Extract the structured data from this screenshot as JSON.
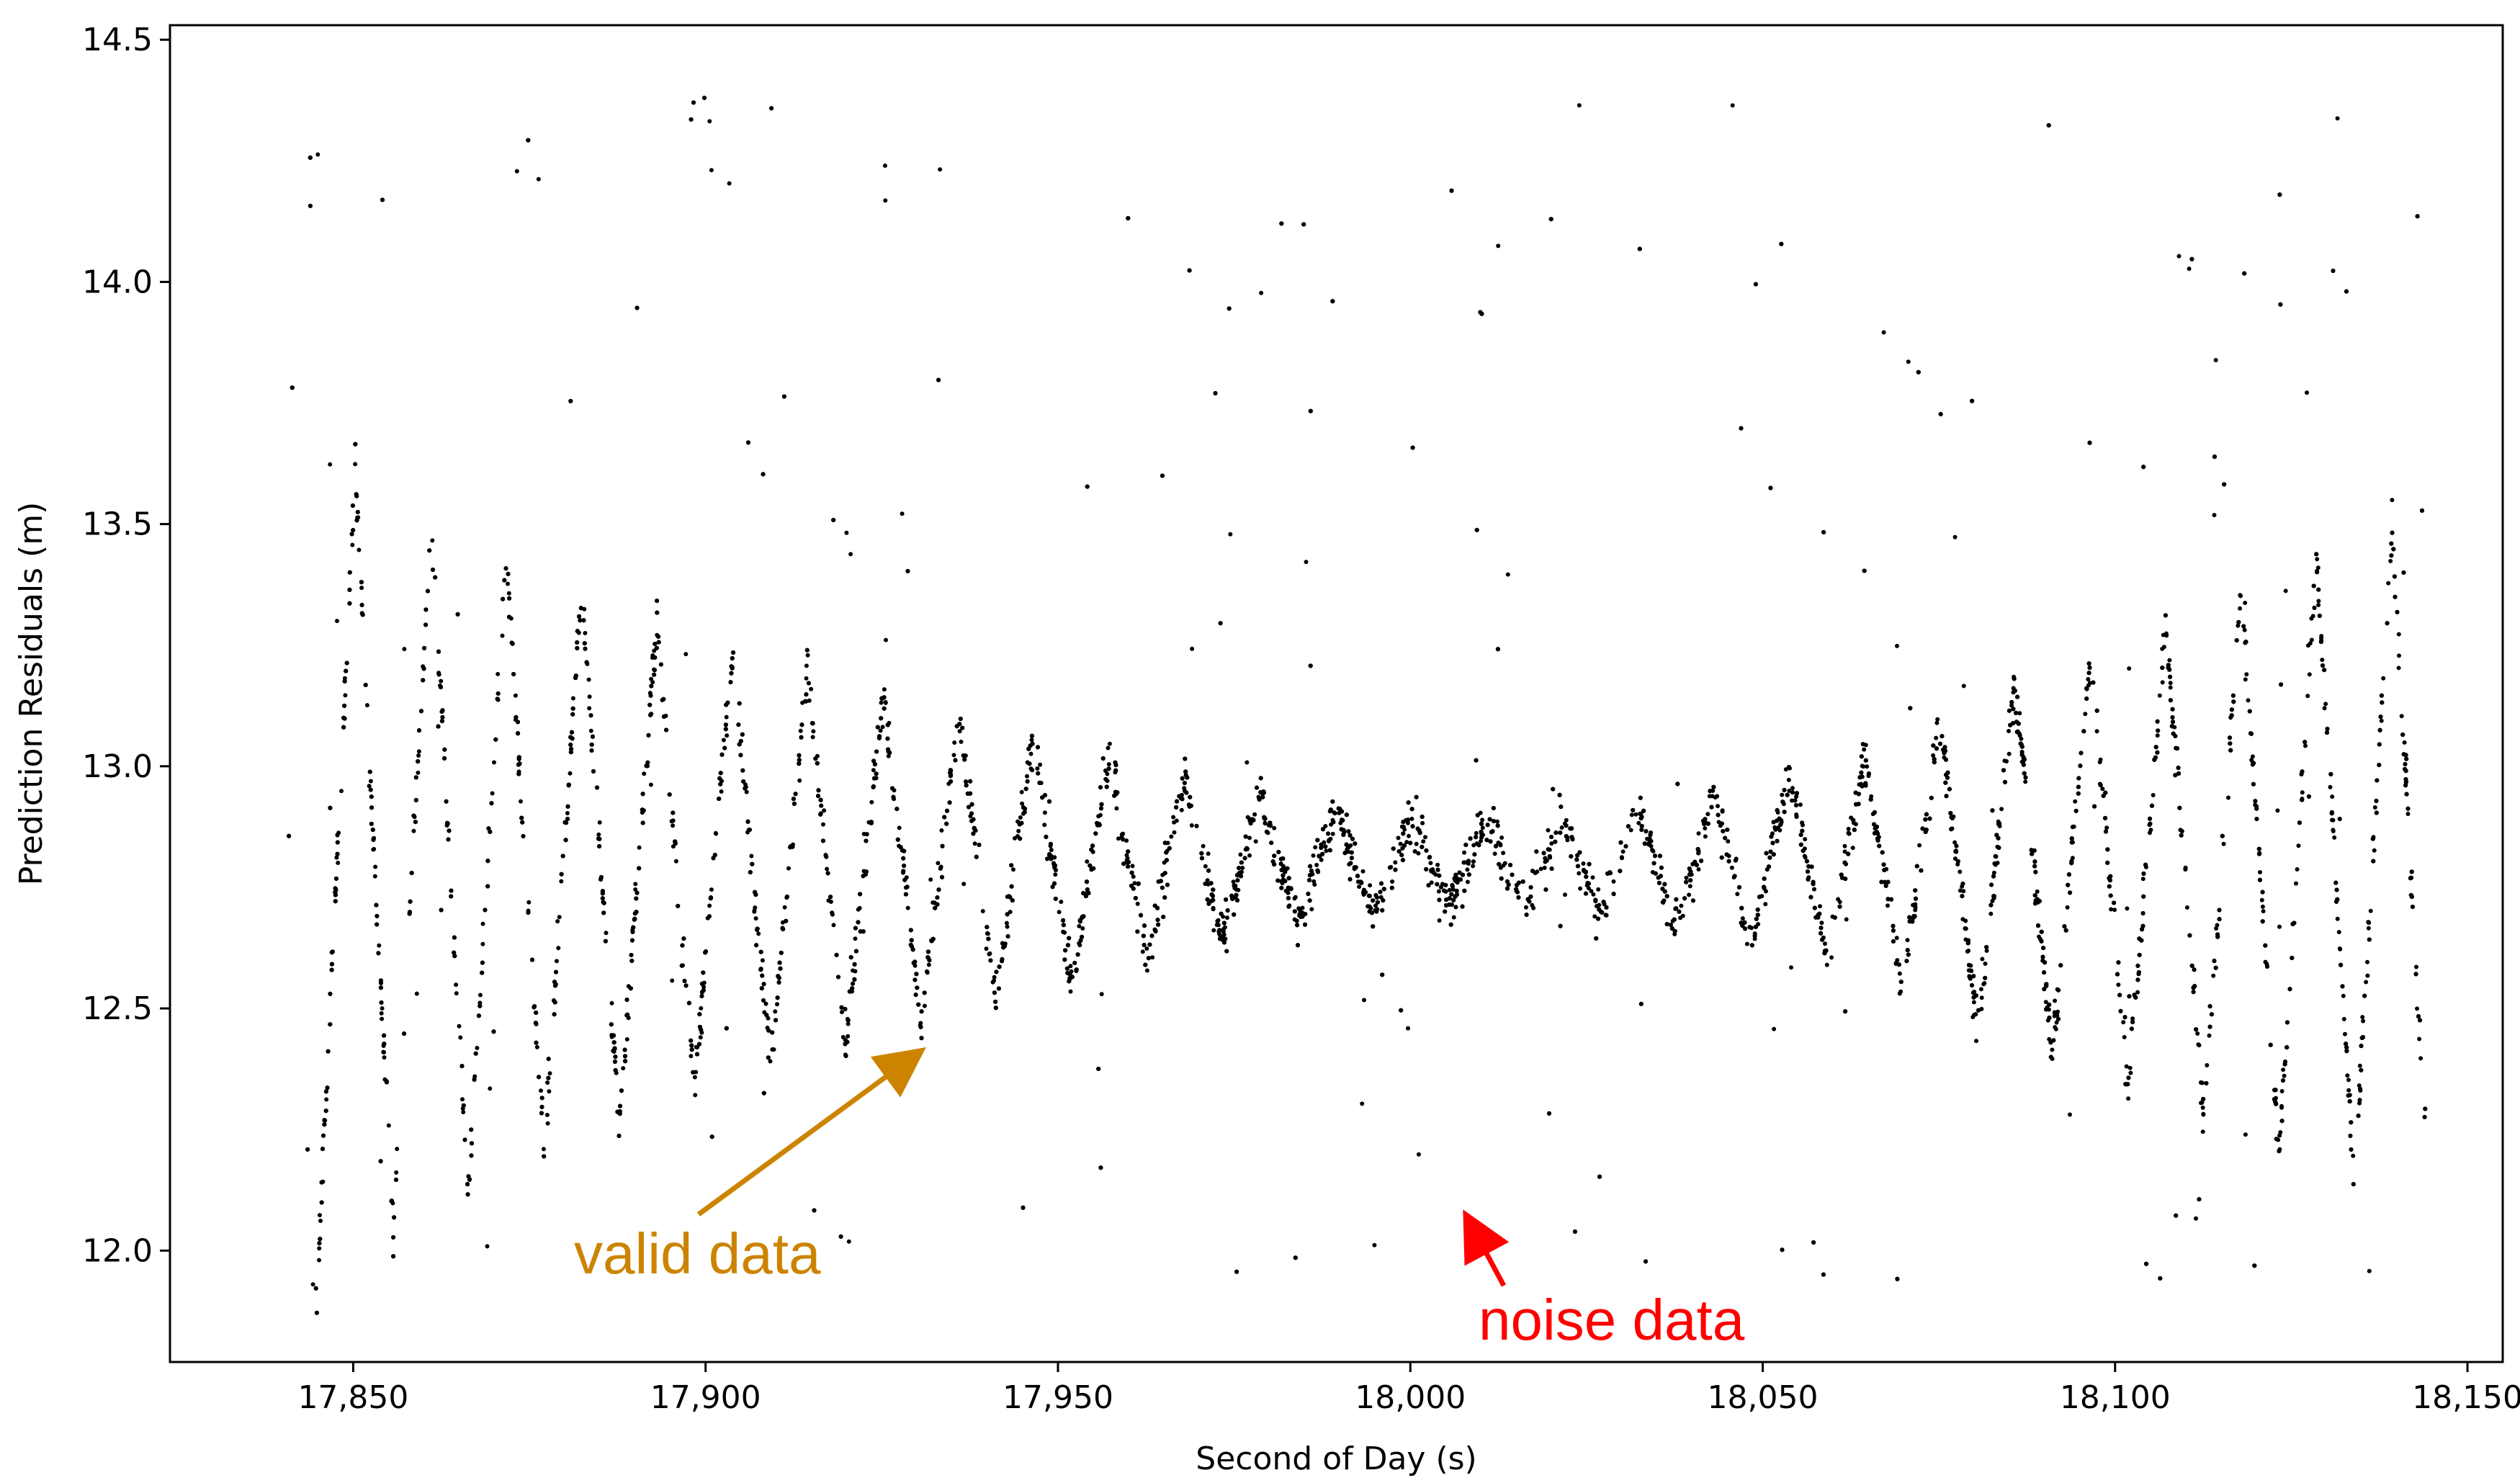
{
  "chart_data": {
    "type": "scatter",
    "title": "",
    "xlabel": "Second of Day (s)",
    "ylabel": "Prediction Residuals (m)",
    "xlim": [
      17824,
      18155
    ],
    "ylim": [
      11.77,
      14.53
    ],
    "xticks": [
      17850,
      17900,
      17950,
      18000,
      18050,
      18100,
      18150
    ],
    "xtick_labels": [
      "17,850",
      "17,900",
      "17,950",
      "18,000",
      "18,050",
      "18,100",
      "18,150"
    ],
    "yticks": [
      12.0,
      12.5,
      13.0,
      13.5,
      14.0,
      14.5
    ],
    "ytick_labels": [
      "12.0",
      "12.5",
      "13.0",
      "13.5",
      "14.0",
      "14.5"
    ],
    "grid": false,
    "legend": "none",
    "point_color": "#000000",
    "series": [
      {
        "x_range": [
          17840,
          18144
        ],
        "oscillation_period_s": 10.7,
        "center": 12.8,
        "envelope": [
          {
            "x": 17845,
            "amp": 0.85
          },
          {
            "x": 17870,
            "amp": 0.65
          },
          {
            "x": 17900,
            "amp": 0.45
          },
          {
            "x": 17950,
            "amp": 0.25
          },
          {
            "x": 17990,
            "amp": 0.1
          },
          {
            "x": 18020,
            "amp": 0.08
          },
          {
            "x": 18060,
            "amp": 0.2
          },
          {
            "x": 18100,
            "amp": 0.45
          },
          {
            "x": 18140,
            "amp": 0.7
          }
        ]
      }
    ],
    "annotations": [
      {
        "text": "valid data",
        "color": "#cc8400",
        "x": 17930,
        "y": 12.41
      },
      {
        "text": "noise data",
        "color": "#ff0000",
        "x": 18008,
        "y": 12.06
      }
    ]
  }
}
